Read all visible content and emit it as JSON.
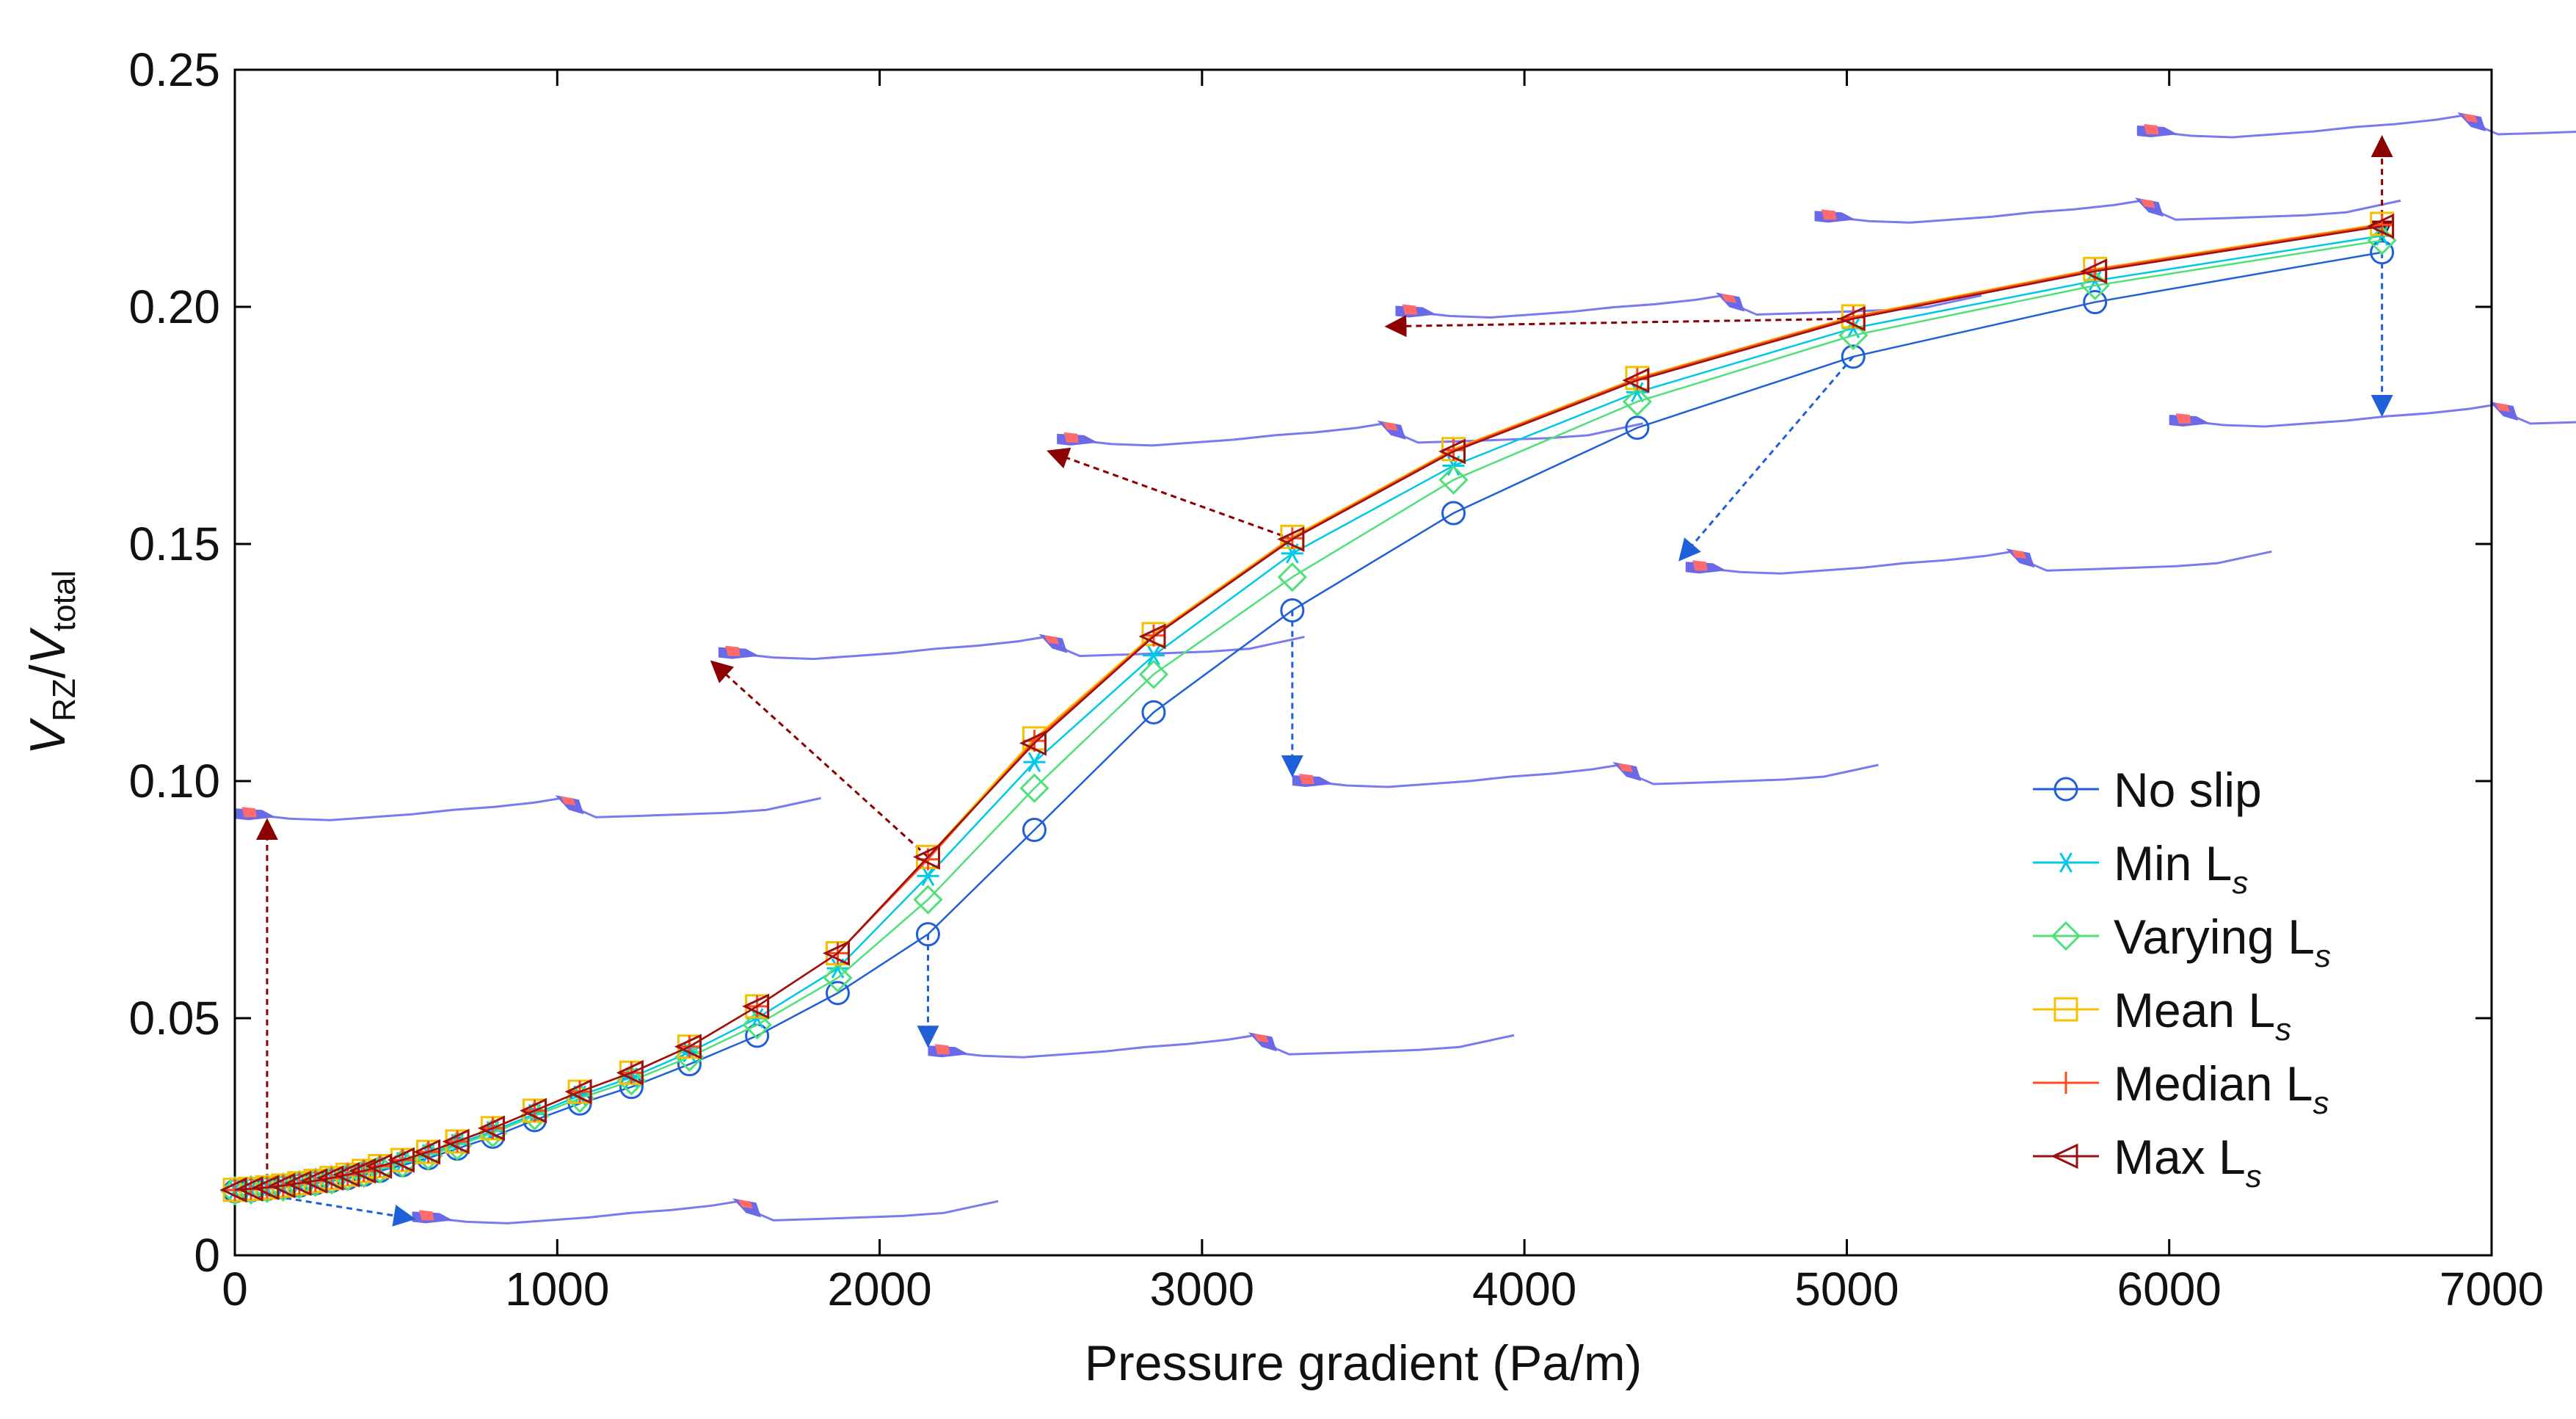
{
  "chart_data": {
    "type": "line",
    "xlabel": "Pressure gradient (Pa/m)",
    "ylabel": {
      "main": "V",
      "sub": "RZ",
      "sep": "/",
      "main2": "V",
      "sub2": "total"
    },
    "xlim": [
      0,
      7000
    ],
    "ylim": [
      0,
      0.25
    ],
    "xticks": [
      0,
      1000,
      2000,
      3000,
      4000,
      5000,
      6000,
      7000
    ],
    "xtick_labels": [
      "0",
      "1000",
      "2000",
      "3000",
      "4000",
      "5000",
      "6000",
      "7000"
    ],
    "yticks": [
      0,
      0.05,
      0.1,
      0.15,
      0.2,
      0.25
    ],
    "ytick_labels": [
      "0",
      "0.05",
      "0.10",
      "0.15",
      "0.20",
      "0.25"
    ],
    "x": [
      0,
      50,
      100,
      150,
      200,
      250,
      300,
      350,
      400,
      450,
      520,
      600,
      690,
      800,
      930,
      1070,
      1230,
      1410,
      1620,
      1870,
      2150,
      2480,
      2850,
      3280,
      3780,
      4350,
      5020,
      5770,
      6660
    ],
    "series": [
      {
        "name": "No slip",
        "label": "No slip",
        "sub": "",
        "color": "#1f5fd8",
        "marker": "circle",
        "values": [
          0.0135,
          0.0137,
          0.014,
          0.0143,
          0.0147,
          0.0152,
          0.0157,
          0.0163,
          0.017,
          0.0178,
          0.019,
          0.0205,
          0.0225,
          0.025,
          0.0285,
          0.032,
          0.0355,
          0.0403,
          0.0463,
          0.0553,
          0.0677,
          0.0897,
          0.1145,
          0.136,
          0.1565,
          0.1745,
          0.1895,
          0.201,
          0.2115
        ]
      },
      {
        "name": "Min Ls",
        "label": "Min L",
        "sub": "s",
        "color": "#00c8e8",
        "marker": "star",
        "values": [
          0.0137,
          0.0139,
          0.0142,
          0.0145,
          0.015,
          0.0155,
          0.016,
          0.0167,
          0.0175,
          0.0184,
          0.0197,
          0.0213,
          0.0235,
          0.0262,
          0.0298,
          0.0337,
          0.0375,
          0.0428,
          0.05,
          0.0605,
          0.08,
          0.104,
          0.1265,
          0.148,
          0.1665,
          0.182,
          0.1955,
          0.2055,
          0.215
        ]
      },
      {
        "name": "Varying Ls",
        "label": "Varying L",
        "sub": "s",
        "color": "#4fe07a",
        "marker": "diamond",
        "values": [
          0.0136,
          0.0138,
          0.0141,
          0.0144,
          0.0149,
          0.0154,
          0.0159,
          0.0166,
          0.0173,
          0.0182,
          0.0194,
          0.021,
          0.0231,
          0.0258,
          0.0294,
          0.0331,
          0.0368,
          0.0418,
          0.0486,
          0.0585,
          0.075,
          0.0985,
          0.1225,
          0.143,
          0.1635,
          0.18,
          0.194,
          0.2045,
          0.214
        ]
      },
      {
        "name": "Mean Ls",
        "label": "Mean L",
        "sub": "s",
        "color": "#f5c000",
        "marker": "square",
        "values": [
          0.0138,
          0.014,
          0.0143,
          0.0147,
          0.0152,
          0.0157,
          0.0163,
          0.017,
          0.0178,
          0.0188,
          0.0201,
          0.0218,
          0.024,
          0.0268,
          0.0305,
          0.0345,
          0.0385,
          0.044,
          0.0525,
          0.0637,
          0.084,
          0.109,
          0.131,
          0.1515,
          0.17,
          0.185,
          0.198,
          0.208,
          0.2175
        ]
      },
      {
        "name": "Median Ls",
        "label": "Median L",
        "sub": "s",
        "color": "#ff4a1c",
        "marker": "plus",
        "values": [
          0.0138,
          0.014,
          0.0143,
          0.0147,
          0.0152,
          0.0157,
          0.0163,
          0.017,
          0.0178,
          0.0188,
          0.0201,
          0.0218,
          0.024,
          0.0268,
          0.0305,
          0.0345,
          0.0385,
          0.044,
          0.0525,
          0.0637,
          0.0835,
          0.1085,
          0.1307,
          0.1512,
          0.1698,
          0.1848,
          0.1978,
          0.2078,
          0.2173
        ]
      },
      {
        "name": "Max Ls",
        "label": "Max L",
        "sub": "s",
        "color": "#9b1010",
        "marker": "triangle-left",
        "values": [
          0.0138,
          0.014,
          0.0143,
          0.0147,
          0.0152,
          0.0157,
          0.0163,
          0.017,
          0.0178,
          0.0188,
          0.0201,
          0.0218,
          0.024,
          0.0268,
          0.0305,
          0.0345,
          0.0385,
          0.044,
          0.0525,
          0.0637,
          0.084,
          0.108,
          0.1305,
          0.151,
          0.1695,
          0.1845,
          0.1975,
          0.2075,
          0.217
        ]
      }
    ],
    "legend_position": "bottom-right",
    "annotations": {
      "description": "fracture profile insets (slip: red arrows up, no slip: blue arrows down)",
      "insets": [
        {
          "anchor": [
            0,
            0.0138
          ],
          "inset": [
            550,
            0.008
          ]
        },
        {
          "anchor": [
            100,
            0.0138
          ],
          "inset": [
            0,
            0.093
          ]
        },
        {
          "anchor": [
            2150,
            0.0677
          ],
          "inset": [
            2150,
            0.043
          ]
        },
        {
          "anchor": [
            2150,
            0.084
          ],
          "inset": [
            1500,
            0.127
          ]
        },
        {
          "anchor": [
            3280,
            0.136
          ],
          "inset": [
            3280,
            0.1
          ]
        },
        {
          "anchor": [
            3280,
            0.151
          ],
          "inset": [
            2550,
            0.172
          ]
        },
        {
          "anchor": [
            5020,
            0.1895
          ],
          "inset": [
            4500,
            0.145
          ]
        },
        {
          "anchor": [
            5020,
            0.1975
          ],
          "inset": [
            3600,
            0.199
          ]
        },
        {
          "anchor": [
            6660,
            0.2115
          ],
          "inset": [
            6000,
            0.176
          ]
        },
        {
          "anchor": [
            6660,
            0.217
          ],
          "inset": [
            4900,
            0.219
          ]
        },
        {
          "anchor": [
            6660,
            0.217
          ],
          "inset": [
            5900,
            0.237
          ]
        }
      ]
    }
  }
}
